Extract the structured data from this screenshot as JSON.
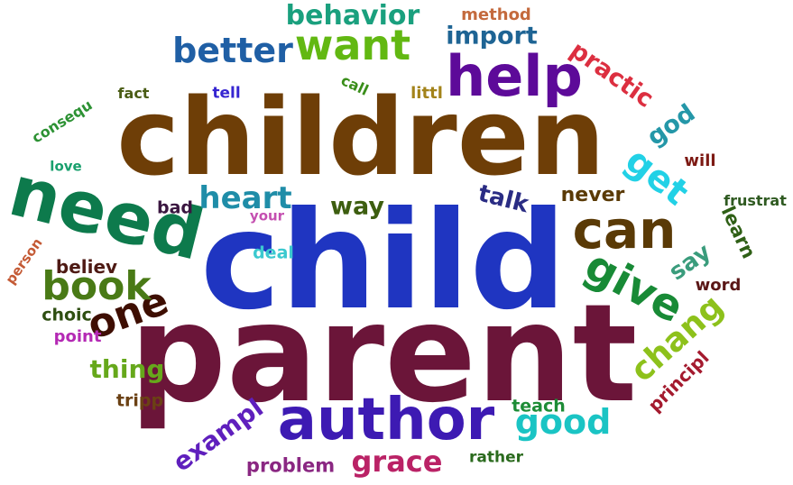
{
  "word_cloud": {
    "words": [
      {
        "text": "child",
        "color": "#1f35c1",
        "rotation": "horizontal"
      },
      {
        "text": "parent",
        "color": "#6b1539",
        "rotation": "horizontal"
      },
      {
        "text": "children",
        "color": "#6e3e07",
        "rotation": "horizontal"
      },
      {
        "text": "author",
        "color": "#3d1ab3",
        "rotation": "horizontal"
      },
      {
        "text": "need",
        "color": "#0d7a4c",
        "rotation": "rotated"
      },
      {
        "text": "help",
        "color": "#5d0a99",
        "rotation": "horizontal"
      },
      {
        "text": "want",
        "color": "#62b812",
        "rotation": "horizontal"
      },
      {
        "text": "can",
        "color": "#5a3a06",
        "rotation": "horizontal"
      },
      {
        "text": "give",
        "color": "#188a36",
        "rotation": "rotated"
      },
      {
        "text": "one",
        "color": "#3e0e02",
        "rotation": "rotated"
      },
      {
        "text": "book",
        "color": "#497a16",
        "rotation": "horizontal"
      },
      {
        "text": "better",
        "color": "#1f5fa5",
        "rotation": "horizontal"
      },
      {
        "text": "heart",
        "color": "#1f8da8",
        "rotation": "horizontal"
      },
      {
        "text": "good",
        "color": "#1ac4c4",
        "rotation": "horizontal"
      },
      {
        "text": "get",
        "color": "#22d1e6",
        "rotation": "rotated"
      },
      {
        "text": "behavior",
        "color": "#1aa07e",
        "rotation": "horizontal"
      },
      {
        "text": "chang",
        "color": "#8dc11b",
        "rotation": "rotated"
      },
      {
        "text": "grace",
        "color": "#ba2266",
        "rotation": "horizontal"
      },
      {
        "text": "exampl",
        "color": "#5f1fbd",
        "rotation": "rotated"
      },
      {
        "text": "thing",
        "color": "#66a81b",
        "rotation": "horizontal"
      },
      {
        "text": "way",
        "color": "#3d5e10",
        "rotation": "horizontal"
      },
      {
        "text": "import",
        "color": "#1e6494",
        "rotation": "horizontal"
      },
      {
        "text": "practic",
        "color": "#dc2f40",
        "rotation": "rotated"
      },
      {
        "text": "god",
        "color": "#2497a8",
        "rotation": "rotated"
      },
      {
        "text": "talk",
        "color": "#2a2c84",
        "rotation": "rotated"
      },
      {
        "text": "say",
        "color": "#3a9c7c",
        "rotation": "rotated"
      },
      {
        "text": "never",
        "color": "#5a3a06",
        "rotation": "horizontal"
      },
      {
        "text": "learn",
        "color": "#2f6016",
        "rotation": "rotated"
      },
      {
        "text": "principl",
        "color": "#a41a2e",
        "rotation": "rotated"
      },
      {
        "text": "problem",
        "color": "#8a2782",
        "rotation": "horizontal"
      },
      {
        "text": "teach",
        "color": "#1d8c36",
        "rotation": "horizontal"
      },
      {
        "text": "method",
        "color": "#c46a3d",
        "rotation": "horizontal"
      },
      {
        "text": "believ",
        "color": "#4e1a14",
        "rotation": "horizontal"
      },
      {
        "text": "choic",
        "color": "#2e4e11",
        "rotation": "horizontal"
      },
      {
        "text": "point",
        "color": "#b429b4",
        "rotation": "horizontal"
      },
      {
        "text": "tripp",
        "color": "#6b4114",
        "rotation": "horizontal"
      },
      {
        "text": "word",
        "color": "#5a1616",
        "rotation": "horizontal"
      },
      {
        "text": "will",
        "color": "#7d1a14",
        "rotation": "horizontal"
      },
      {
        "text": "frustrat",
        "color": "#2f5a21",
        "rotation": "horizontal"
      },
      {
        "text": "bad",
        "color": "#3a1640",
        "rotation": "horizontal"
      },
      {
        "text": "deal",
        "color": "#3bc9cf",
        "rotation": "horizontal"
      },
      {
        "text": "your",
        "color": "#c44fb0",
        "rotation": "horizontal"
      },
      {
        "text": "tell",
        "color": "#3525d1",
        "rotation": "horizontal"
      },
      {
        "text": "call",
        "color": "#3a8e1a",
        "rotation": "rotated"
      },
      {
        "text": "littl",
        "color": "#a3831a",
        "rotation": "horizontal"
      },
      {
        "text": "fact",
        "color": "#4a5c14",
        "rotation": "horizontal"
      },
      {
        "text": "consequ",
        "color": "#2d9234",
        "rotation": "rotated"
      },
      {
        "text": "love",
        "color": "#1aa06e",
        "rotation": "horizontal"
      },
      {
        "text": "person",
        "color": "#c45a35",
        "rotation": "rotated"
      },
      {
        "text": "rather",
        "color": "#2a6a1d",
        "rotation": "horizontal"
      }
    ]
  }
}
